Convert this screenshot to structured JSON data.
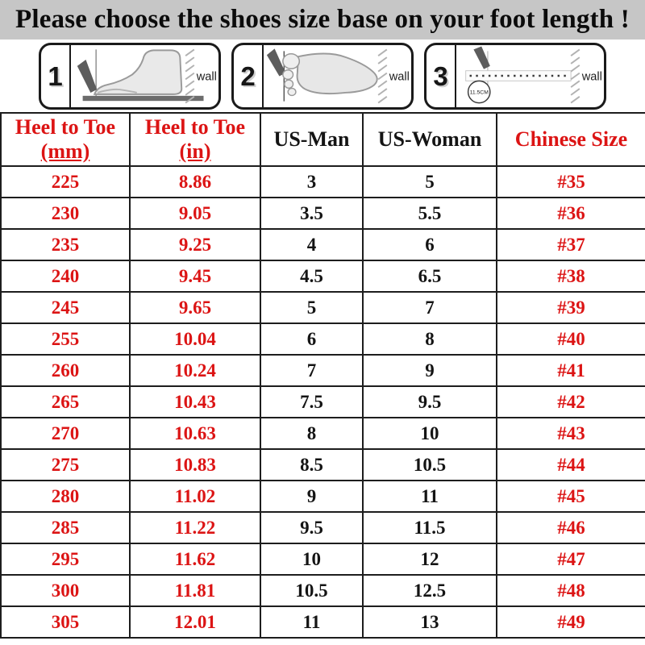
{
  "title": "Please choose the shoes size base on your foot length !",
  "colors": {
    "accent_red": "#dc1414",
    "text_black": "#141414",
    "title_bar_bg": "#c6c6c6"
  },
  "diagrams": {
    "wall_label": "wall",
    "steps": [
      {
        "number": "1"
      },
      {
        "number": "2"
      },
      {
        "number": "3",
        "measurement_label": "11.5CM"
      }
    ]
  },
  "table": {
    "headers": [
      {
        "line1": "Heel to Toe",
        "line2": "(mm)"
      },
      {
        "line1": "Heel to Toe",
        "line2": "(in)"
      },
      {
        "line1": "US-Man"
      },
      {
        "line1": "US-Woman"
      },
      {
        "line1": "Chinese Size"
      }
    ],
    "column_colors": [
      "red",
      "red",
      "black",
      "black",
      "red"
    ],
    "rows": [
      [
        "225",
        "8.86",
        "3",
        "5",
        "#35"
      ],
      [
        "230",
        "9.05",
        "3.5",
        "5.5",
        "#36"
      ],
      [
        "235",
        "9.25",
        "4",
        "6",
        "#37"
      ],
      [
        "240",
        "9.45",
        "4.5",
        "6.5",
        "#38"
      ],
      [
        "245",
        "9.65",
        "5",
        "7",
        "#39"
      ],
      [
        "255",
        "10.04",
        "6",
        "8",
        "#40"
      ],
      [
        "260",
        "10.24",
        "7",
        "9",
        "#41"
      ],
      [
        "265",
        "10.43",
        "7.5",
        "9.5",
        "#42"
      ],
      [
        "270",
        "10.63",
        "8",
        "10",
        "#43"
      ],
      [
        "275",
        "10.83",
        "8.5",
        "10.5",
        "#44"
      ],
      [
        "280",
        "11.02",
        "9",
        "11",
        "#45"
      ],
      [
        "285",
        "11.22",
        "9.5",
        "11.5",
        "#46"
      ],
      [
        "295",
        "11.62",
        "10",
        "12",
        "#47"
      ],
      [
        "300",
        "11.81",
        "10.5",
        "12.5",
        "#48"
      ],
      [
        "305",
        "12.01",
        "11",
        "13",
        "#49"
      ]
    ]
  }
}
